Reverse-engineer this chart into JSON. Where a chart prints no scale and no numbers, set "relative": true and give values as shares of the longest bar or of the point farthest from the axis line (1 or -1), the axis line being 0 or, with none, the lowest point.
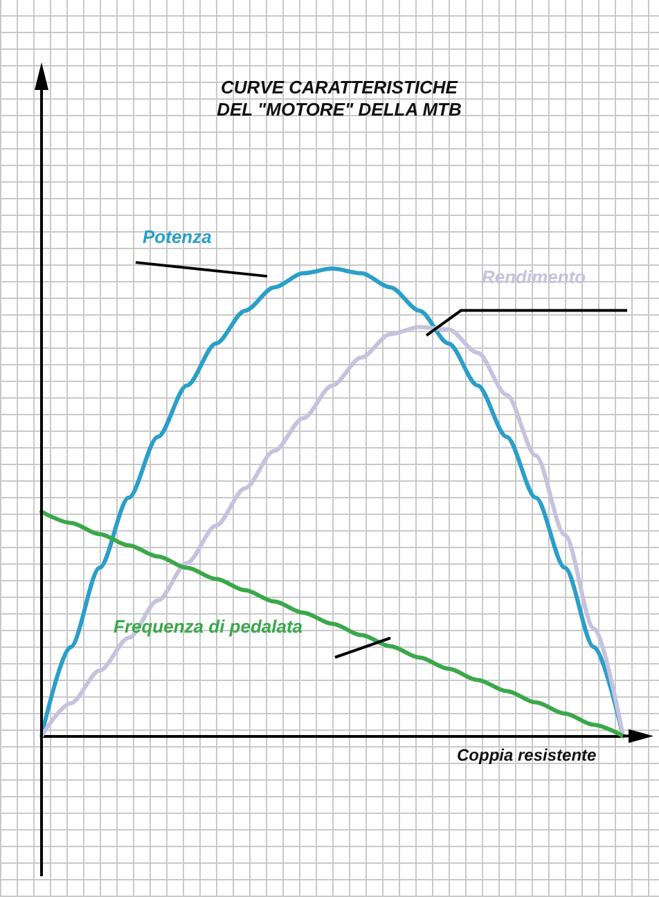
{
  "chart_data": {
    "type": "line",
    "title": "CURVE CARATTERISTICHE\nDEL \"MOTORE\" DELLA MTB",
    "xlabel": "Coppia resistente",
    "relative": true,
    "marker": "none",
    "line_style": "solid",
    "categories": [
      null,
      null,
      null,
      null,
      null,
      null,
      null,
      null,
      null,
      null,
      null,
      null,
      null,
      null,
      null,
      null,
      null,
      null,
      null,
      null,
      null
    ],
    "series": [
      {
        "name": "Potenza",
        "color": "#2a9fc9",
        "values": [
          0,
          0.19,
          0.36,
          0.51,
          0.64,
          0.75,
          0.84,
          0.91,
          0.96,
          0.99,
          1,
          0.99,
          0.96,
          0.91,
          0.84,
          0.75,
          0.64,
          0.51,
          0.36,
          0.19,
          0
        ]
      },
      {
        "name": "Rendimento",
        "color": "#c5c3dd",
        "values": [
          0,
          0.07,
          0.14,
          0.21,
          0.29,
          0.37,
          0.45,
          0.53,
          0.61,
          0.68,
          0.75,
          0.81,
          0.86,
          0.875,
          0.87,
          0.82,
          0.73,
          0.6,
          0.43,
          0.23,
          0
        ]
      },
      {
        "name": "Frequenza di pedalata",
        "color": "#3aa84a",
        "values": [
          0.48,
          0.456,
          0.432,
          0.408,
          0.384,
          0.36,
          0.336,
          0.312,
          0.288,
          0.264,
          0.24,
          0.216,
          0.192,
          0.168,
          0.144,
          0.12,
          0.096,
          0.072,
          0.048,
          0.024,
          0
        ]
      }
    ]
  }
}
